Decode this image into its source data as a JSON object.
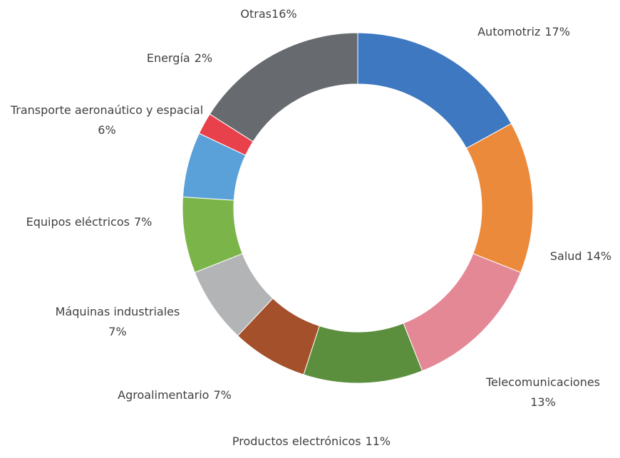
{
  "chart_data": {
    "type": "donut",
    "categories": [
      "Automotriz",
      "Salud",
      "Telecomunicaciones",
      "Productos electrónicos",
      "Agroalimentario",
      "Máquinas industriales",
      "Equipos eléctricos",
      "Transporte aeronaútico y espacial",
      "Energía",
      "Otras"
    ],
    "values": [
      17,
      14,
      13,
      11,
      7,
      7,
      7,
      6,
      2,
      16
    ],
    "value_labels": [
      "17%",
      "14%",
      "13%",
      "11%",
      "7%",
      "7%",
      "7%",
      "6%",
      "2%",
      "16%"
    ],
    "colors": [
      "#3e78c1",
      "#ec8a3b",
      "#e48896",
      "#5b8f3e",
      "#a4502a",
      "#b3b4b6",
      "#7bb549",
      "#5aa0d9",
      "#e8414c",
      "#676b70"
    ]
  }
}
